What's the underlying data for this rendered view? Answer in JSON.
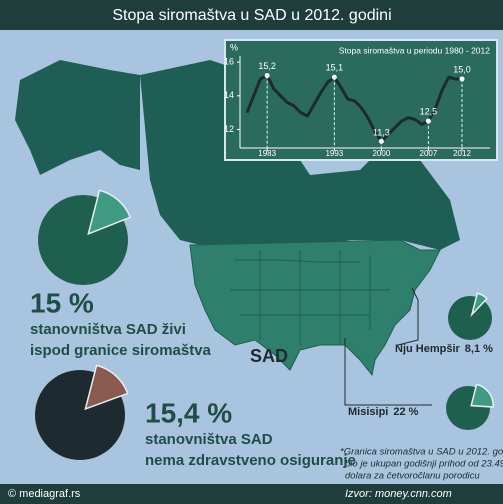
{
  "title": "Stopa siromaštva u SAD u 2012. godini",
  "map_label": "SAD",
  "footnote": [
    "*Granica siromaštva u SAD u 2012. godini",
    "bio je ukupan godišnji prihod od 23.492",
    "dolara za  četvoročlanu porodicu"
  ],
  "copyright": "© mediagraf.rs",
  "source": "Izvor: money.cnn.com",
  "chart_data": [
    {
      "type": "line",
      "title": "Stopa siromaštva u periodu 1980 - 2012",
      "y_label": "%",
      "x": [
        1980,
        1981,
        1982,
        1983,
        1984,
        1985,
        1986,
        1987,
        1988,
        1989,
        1990,
        1991,
        1992,
        1993,
        1994,
        1995,
        1996,
        1997,
        1998,
        1999,
        2000,
        2001,
        2002,
        2003,
        2004,
        2005,
        2006,
        2007,
        2008,
        2009,
        2010,
        2011,
        2012
      ],
      "series": [
        {
          "color": "#1c2b2e",
          "values": [
            13.0,
            14.0,
            15.0,
            15.2,
            14.4,
            14.0,
            13.6,
            13.4,
            13.0,
            12.8,
            13.5,
            14.2,
            14.8,
            15.1,
            14.5,
            13.8,
            13.7,
            13.3,
            12.7,
            11.9,
            11.3,
            11.7,
            12.1,
            12.5,
            12.7,
            12.6,
            12.3,
            12.5,
            13.2,
            14.3,
            15.1,
            15.0,
            15.0
          ],
          "value_labels": [
            null,
            null,
            null,
            "15,2",
            null,
            null,
            null,
            null,
            null,
            null,
            null,
            null,
            null,
            "15,1",
            null,
            null,
            null,
            null,
            null,
            null,
            "11,3",
            null,
            null,
            null,
            null,
            null,
            null,
            "12,5",
            null,
            null,
            null,
            null,
            "15,0"
          ]
        }
      ],
      "xlim": [
        1980,
        2012
      ],
      "xticks": [
        1983,
        1993,
        2000,
        2007,
        2012
      ],
      "ylim": [
        10.9,
        16.6
      ],
      "yticks": [
        12,
        14,
        16
      ]
    },
    {
      "type": "pie",
      "values": [
        15
      ],
      "value_labels": [
        "15 %"
      ],
      "colors": [
        "#3e9a80",
        "#1f5f4e"
      ],
      "caption": [
        "stanovništva SAD živi",
        "ispod granice siromaštva"
      ]
    },
    {
      "type": "pie",
      "values": [
        15.4
      ],
      "value_labels": [
        "15,4 %"
      ],
      "colors": [
        "#8b5a4e",
        "#1d2a30"
      ],
      "caption": [
        "stanovništva SAD",
        "nema zdravstveno osiguranje"
      ]
    },
    {
      "type": "pie",
      "name": "Nju Hempšir",
      "values": [
        8.1
      ],
      "value_labels": [
        "8,1 %"
      ],
      "colors": [
        "#3e9a80",
        "#1f5f4e"
      ]
    },
    {
      "type": "pie",
      "name": "Misisipi",
      "values": [
        22
      ],
      "value_labels": [
        "22 %"
      ],
      "colors": [
        "#3e9a80",
        "#1f5f4e"
      ]
    }
  ]
}
